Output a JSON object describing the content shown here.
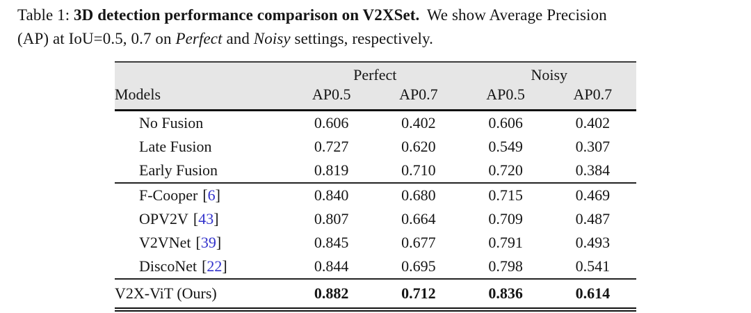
{
  "colors": {
    "citation_blue": "#3333cc",
    "header_background": "#e6e6e6",
    "text": "#151515",
    "rule": "#101010"
  },
  "punctuation": {
    "open_bracket": "[",
    "close_bracket": "]"
  },
  "caption": {
    "line1": {
      "label": "Table 1: ",
      "bold": "3D detection performance comparison on V2XSet.",
      "rest": "We show Average Precision"
    },
    "line2": {
      "pre": "(AP) at IoU=0.5, 0.7 on ",
      "italic1": "Perfect",
      "mid": " and ",
      "italic2": "Noisy",
      "post": " settings, respectively."
    }
  },
  "table": {
    "col_groups": [
      {
        "label": "Perfect"
      },
      {
        "label": "Noisy"
      }
    ],
    "headers": {
      "models": "Models",
      "cols": [
        "AP0.5",
        "AP0.7",
        "AP0.5",
        "AP0.7"
      ]
    },
    "rows": [
      {
        "model": "No Fusion",
        "values": [
          "0.606",
          "0.402",
          "0.606",
          "0.402"
        ]
      },
      {
        "model": "Late Fusion",
        "values": [
          "0.727",
          "0.620",
          "0.549",
          "0.307"
        ]
      },
      {
        "model": "Early Fusion",
        "values": [
          "0.819",
          "0.710",
          "0.720",
          "0.384"
        ]
      },
      {
        "model": "F-Cooper",
        "cite": "6",
        "values": [
          "0.840",
          "0.680",
          "0.715",
          "0.469"
        ]
      },
      {
        "model": "OPV2V",
        "cite": "43",
        "values": [
          "0.807",
          "0.664",
          "0.709",
          "0.487"
        ]
      },
      {
        "model": "V2VNet",
        "cite": "39",
        "values": [
          "0.845",
          "0.677",
          "0.791",
          "0.493"
        ]
      },
      {
        "model": "DiscoNet",
        "cite": "22",
        "values": [
          "0.844",
          "0.695",
          "0.798",
          "0.541"
        ]
      },
      {
        "model": "V2X-ViT (Ours)",
        "bold": true,
        "values": [
          "0.882",
          "0.712",
          "0.836",
          "0.614"
        ]
      }
    ]
  }
}
